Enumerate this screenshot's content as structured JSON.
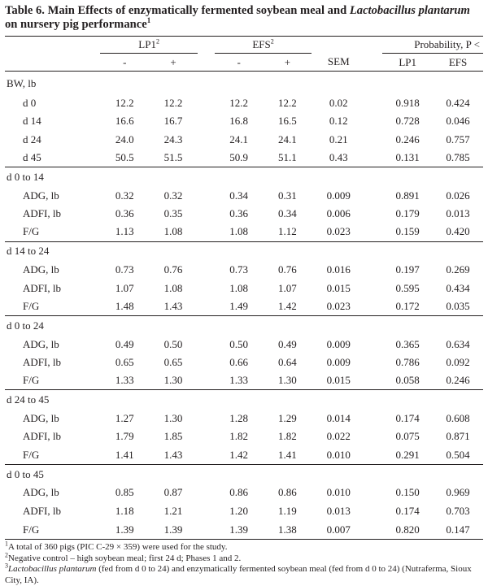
{
  "title": {
    "prefix": "Table 6. Main Effects of enzymatically fermented soybean meal and ",
    "italic": "Lactobacillus plantarum",
    "suffix": " on nursery pig performance",
    "sup": "1"
  },
  "header": {
    "lp1": "LP1",
    "lp1_sup": "2",
    "efs": "EFS",
    "efs_sup": "2",
    "probability": "Probability, P <",
    "minus": "-",
    "plus": "+",
    "sem": "SEM",
    "p_lp1": "LP1",
    "p_efs": "EFS"
  },
  "sections": [
    {
      "label": "BW, lb",
      "rows": [
        {
          "label": "d 0",
          "values": [
            "12.2",
            "12.2",
            "12.2",
            "12.2",
            "0.02",
            "0.918",
            "0.424"
          ]
        },
        {
          "label": "d 14",
          "values": [
            "16.6",
            "16.7",
            "16.8",
            "16.5",
            "0.12",
            "0.728",
            "0.046"
          ]
        },
        {
          "label": "d 24",
          "values": [
            "24.0",
            "24.3",
            "24.1",
            "24.1",
            "0.21",
            "0.246",
            "0.757"
          ]
        },
        {
          "label": "d 45",
          "values": [
            "50.5",
            "51.5",
            "50.9",
            "51.1",
            "0.43",
            "0.131",
            "0.785"
          ]
        }
      ]
    },
    {
      "label": "d 0 to 14",
      "rows": [
        {
          "label": "ADG, lb",
          "values": [
            "0.32",
            "0.32",
            "0.34",
            "0.31",
            "0.009",
            "0.891",
            "0.026"
          ]
        },
        {
          "label": "ADFI, lb",
          "values": [
            "0.36",
            "0.35",
            "0.36",
            "0.34",
            "0.006",
            "0.179",
            "0.013"
          ]
        },
        {
          "label": "F/G",
          "values": [
            "1.13",
            "1.08",
            "1.08",
            "1.12",
            "0.023",
            "0.159",
            "0.420"
          ]
        }
      ]
    },
    {
      "label": "d 14 to 24",
      "rows": [
        {
          "label": "ADG, lb",
          "values": [
            "0.73",
            "0.76",
            "0.73",
            "0.76",
            "0.016",
            "0.197",
            "0.269"
          ]
        },
        {
          "label": "ADFI, lb",
          "values": [
            "1.07",
            "1.08",
            "1.08",
            "1.07",
            "0.015",
            "0.595",
            "0.434"
          ]
        },
        {
          "label": "F/G",
          "values": [
            "1.48",
            "1.43",
            "1.49",
            "1.42",
            "0.023",
            "0.172",
            "0.035"
          ]
        }
      ]
    },
    {
      "label": "d 0 to 24",
      "rows": [
        {
          "label": "ADG, lb",
          "values": [
            "0.49",
            "0.50",
            "0.50",
            "0.49",
            "0.009",
            "0.365",
            "0.634"
          ]
        },
        {
          "label": "ADFI, lb",
          "values": [
            "0.65",
            "0.65",
            "0.66",
            "0.64",
            "0.009",
            "0.786",
            "0.092"
          ]
        },
        {
          "label": "F/G",
          "values": [
            "1.33",
            "1.30",
            "1.33",
            "1.30",
            "0.015",
            "0.058",
            "0.246"
          ]
        }
      ]
    },
    {
      "label": "d 24 to 45",
      "rows": [
        {
          "label": "ADG, lb",
          "values": [
            "1.27",
            "1.30",
            "1.28",
            "1.29",
            "0.014",
            "0.174",
            "0.608"
          ]
        },
        {
          "label": "ADFI, lb",
          "values": [
            "1.79",
            "1.85",
            "1.82",
            "1.82",
            "0.022",
            "0.075",
            "0.871"
          ]
        },
        {
          "label": "F/G",
          "values": [
            "1.41",
            "1.43",
            "1.42",
            "1.41",
            "0.010",
            "0.291",
            "0.504"
          ]
        }
      ]
    },
    {
      "label": "d 0 to 45",
      "rows": [
        {
          "label": "ADG, lb",
          "values": [
            "0.85",
            "0.87",
            "0.86",
            "0.86",
            "0.010",
            "0.150",
            "0.969"
          ]
        },
        {
          "label": "ADFI, lb",
          "values": [
            "1.18",
            "1.21",
            "1.20",
            "1.19",
            "0.013",
            "0.174",
            "0.703"
          ]
        },
        {
          "label": "F/G",
          "values": [
            "1.39",
            "1.39",
            "1.39",
            "1.38",
            "0.007",
            "0.820",
            "0.147"
          ]
        }
      ]
    }
  ],
  "footnotes": {
    "f1_sup": "1",
    "f1": "A total of 360 pigs (PIC C-29 × 359) were used for the study.",
    "f2_sup": "2",
    "f2": "Negative control – high soybean meal; first 24 d; Phases 1 and 2.",
    "f3_sup": "3",
    "f3_italic": "Lactobacillus plantarum",
    "f3_rest": " (fed from d 0 to 24) and enzymatically fermented soybean meal (fed from d 0 to 24) (Nutraferma, Sioux City, IA)."
  }
}
